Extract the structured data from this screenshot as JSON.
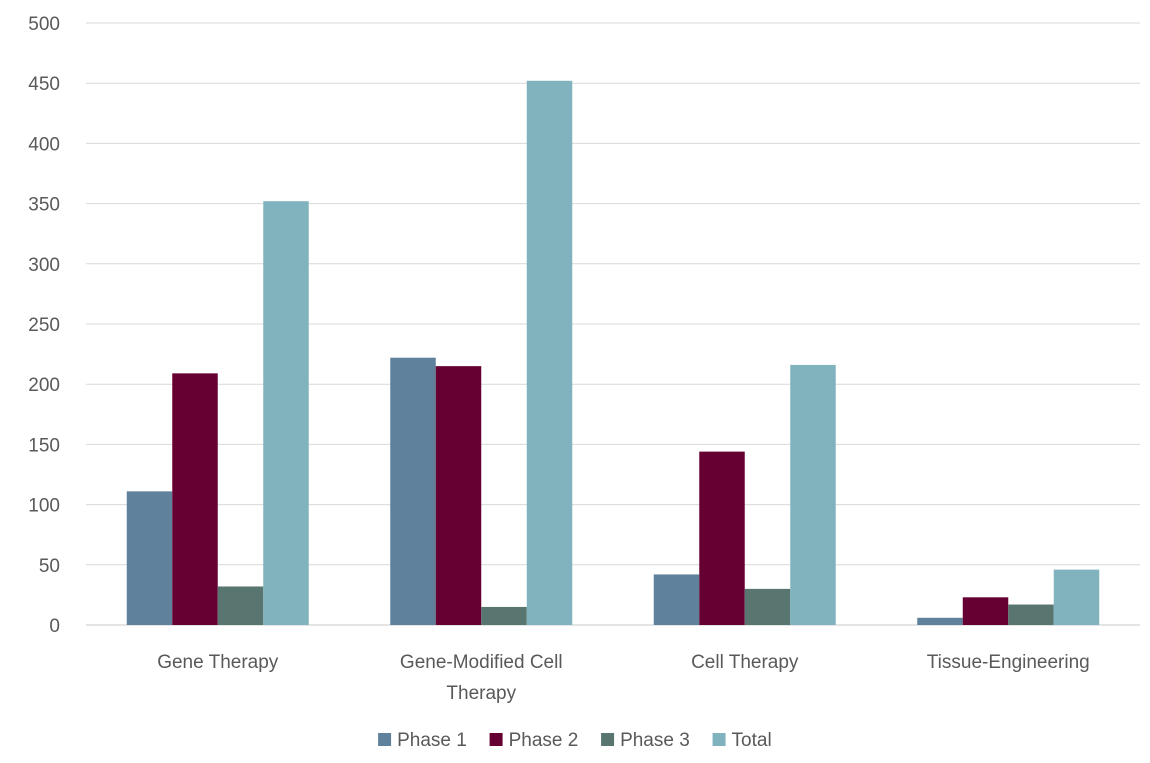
{
  "chart_data": {
    "type": "bar",
    "title": "",
    "xlabel": "",
    "ylabel": "",
    "categories": [
      [
        "Gene Therapy"
      ],
      [
        "Gene-Modified Cell",
        "Therapy"
      ],
      [
        "Cell Therapy"
      ],
      [
        "Tissue-Engineering"
      ]
    ],
    "series": [
      {
        "name": "Phase 1",
        "color": "#5f819b",
        "values": [
          111,
          222,
          42,
          6
        ]
      },
      {
        "name": "Phase 2",
        "color": "#660033",
        "values": [
          209,
          215,
          144,
          23
        ]
      },
      {
        "name": "Phase 3",
        "color": "#587570",
        "values": [
          32,
          15,
          30,
          17
        ]
      },
      {
        "name": "Total",
        "color": "#80b3be",
        "values": [
          352,
          452,
          216,
          46
        ]
      }
    ],
    "ylim": [
      0,
      500
    ],
    "ytick_step": 50,
    "grid": true,
    "legend_position": "bottom"
  }
}
